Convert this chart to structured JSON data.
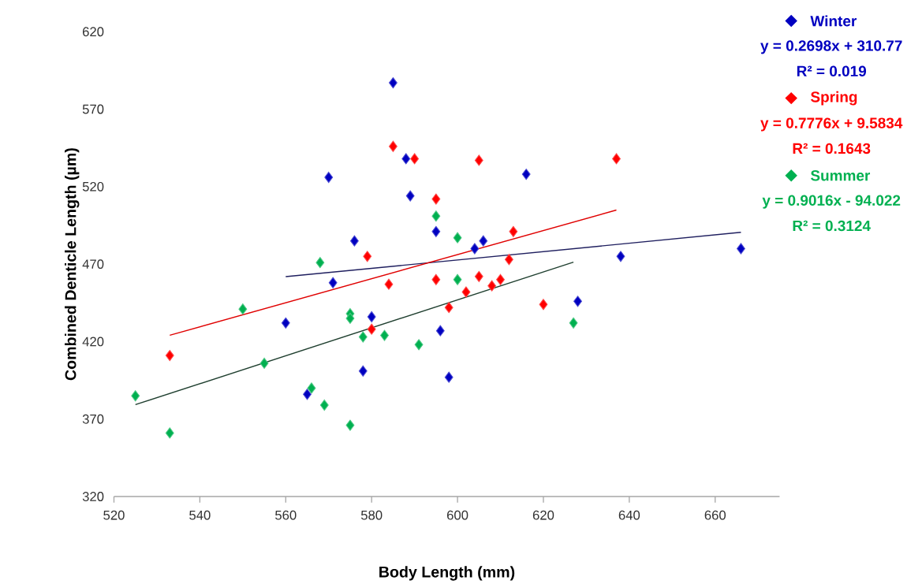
{
  "chart_data": {
    "type": "scatter",
    "xlabel": "Body Length (mm)",
    "ylabel": "Combined Denticle Length (µm)",
    "xlim": [
      520,
      675
    ],
    "ylim": [
      320,
      620
    ],
    "xticks": [
      520,
      540,
      560,
      580,
      600,
      620,
      640,
      660
    ],
    "yticks": [
      320,
      370,
      420,
      470,
      520,
      570,
      620
    ],
    "marker": "diamond",
    "legend": "right",
    "series": [
      {
        "name": "Winter",
        "color": "#0000c0",
        "x": [
          560,
          565,
          570,
          571,
          576,
          578,
          580,
          585,
          588,
          589,
          595,
          596,
          598,
          604,
          606,
          616,
          628,
          638,
          666
        ],
        "values": [
          432,
          386,
          526,
          458,
          485,
          401,
          436,
          587,
          538,
          514,
          491,
          427,
          397,
          480,
          485,
          528,
          446,
          475,
          480
        ]
      },
      {
        "name": "Spring",
        "color": "#ff0000",
        "x": [
          533,
          579,
          580,
          584,
          585,
          590,
          595,
          595,
          598,
          602,
          605,
          605,
          608,
          610,
          612,
          613,
          620,
          637
        ],
        "values": [
          411,
          475,
          428,
          457,
          546,
          538,
          512,
          460,
          442,
          452,
          537,
          462,
          456,
          460,
          473,
          491,
          444,
          538
        ]
      },
      {
        "name": "Summer",
        "color": "#00b050",
        "x": [
          525,
          533,
          550,
          555,
          566,
          568,
          569,
          575,
          575,
          575,
          578,
          583,
          591,
          595,
          600,
          600,
          627
        ],
        "values": [
          385,
          361,
          441,
          406,
          390,
          471,
          379,
          438,
          435,
          366,
          423,
          424,
          418,
          501,
          487,
          460,
          432
        ]
      },
      {
        "type": "line",
        "marker": "none",
        "color": "#1f1f5f",
        "x": [
          560,
          666
        ],
        "values": [
          461.9,
          490.5
        ]
      },
      {
        "type": "line",
        "marker": "none",
        "color": "#e00000",
        "x": [
          533,
          637
        ],
        "values": [
          424.1,
          504.9
        ]
      },
      {
        "type": "line",
        "marker": "none",
        "color": "#1f3f2f",
        "x": [
          525,
          627
        ],
        "values": [
          379.3,
          471.3
        ]
      }
    ],
    "annotations": [
      "y = 0.2698x + 310.77",
      "R² = 0.019",
      "y = 0.7776x + 9.5834",
      "R² = 0.1643",
      "y = 0.9016x - 94.022",
      "R² = 0.3124"
    ]
  }
}
